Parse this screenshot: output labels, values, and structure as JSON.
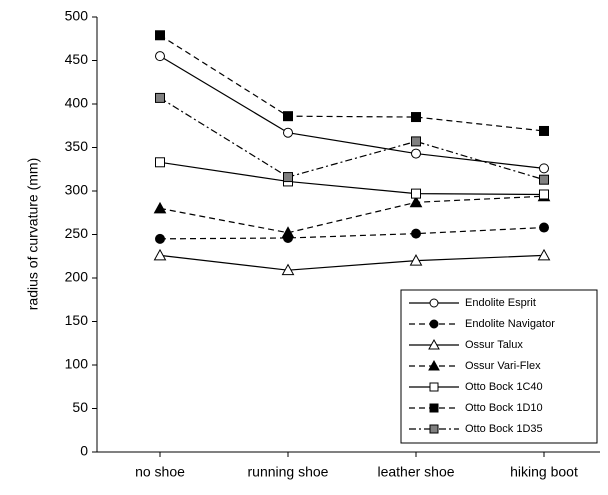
{
  "chart_data": {
    "type": "line",
    "y_label": "radius of curvature (mm)",
    "categories": [
      "no shoe",
      "running shoe",
      "leather shoe",
      "hiking boot"
    ],
    "ylim": [
      0,
      500
    ],
    "yticks": [
      0,
      50,
      100,
      150,
      200,
      250,
      300,
      350,
      400,
      450,
      500
    ],
    "legend": "lower right",
    "series": [
      {
        "name": "Endolite Esprit",
        "color": "#000000",
        "marker": "circle",
        "marker_fill": "#ffffff",
        "dash": "solid",
        "values": [
          455,
          367,
          343,
          326
        ]
      },
      {
        "name": "Endolite Navigator",
        "color": "#000000",
        "marker": "circle",
        "marker_fill": "#000000",
        "dash": "dashed",
        "values": [
          245,
          246,
          251,
          258
        ]
      },
      {
        "name": "Ossur Talux",
        "color": "#000000",
        "marker": "triangle",
        "marker_fill": "#ffffff",
        "dash": "solid",
        "values": [
          226,
          209,
          220,
          226
        ]
      },
      {
        "name": "Ossur Vari-Flex",
        "color": "#000000",
        "marker": "triangle",
        "marker_fill": "#000000",
        "dash": "dashed",
        "values": [
          280,
          252,
          287,
          294
        ]
      },
      {
        "name": "Otto Bock 1C40",
        "color": "#000000",
        "marker": "square",
        "marker_fill": "#ffffff",
        "dash": "solid",
        "values": [
          333,
          311,
          297,
          296
        ]
      },
      {
        "name": "Otto Bock 1D10",
        "color": "#000000",
        "marker": "square",
        "marker_fill": "#000000",
        "dash": "dashed",
        "values": [
          479,
          386,
          385,
          369
        ]
      },
      {
        "name": "Otto Bock 1D35",
        "color": "#000000",
        "marker": "square",
        "marker_fill": "#808080",
        "dash": "dashdot",
        "values": [
          407,
          316,
          357,
          313
        ]
      }
    ]
  }
}
